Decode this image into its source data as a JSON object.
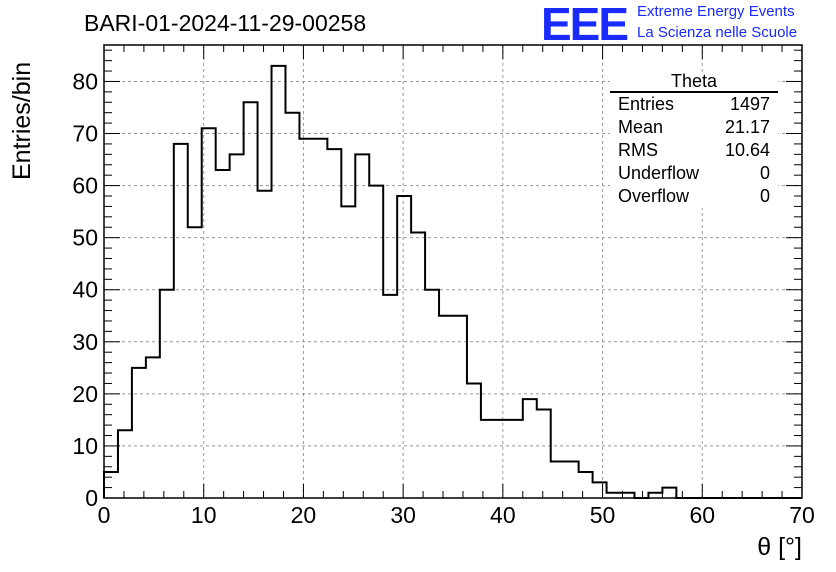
{
  "title": "BARI-01-2024-11-29-00258",
  "logo": {
    "mark": "EEE",
    "line1": "Extreme Energy Events",
    "line2": "La Scienza nelle Scuole",
    "color": "#1a2bff"
  },
  "stats": {
    "title": "Theta",
    "rows": [
      {
        "label": "Entries",
        "value": "1497"
      },
      {
        "label": "Mean",
        "value": "21.17"
      },
      {
        "label": "RMS",
        "value": "10.64"
      },
      {
        "label": "Underflow",
        "value": "0"
      },
      {
        "label": "Overflow",
        "value": "0"
      }
    ]
  },
  "chart_data": {
    "type": "histogram",
    "title": "BARI-01-2024-11-29-00258",
    "xlabel": "θ [°]",
    "ylabel": "Entries/bin",
    "xlim": [
      0,
      70
    ],
    "ylim": [
      0,
      87
    ],
    "grid": true,
    "bin_width": 1.4,
    "bin_edges_start": 0,
    "x_ticks": [
      0,
      10,
      20,
      30,
      40,
      50,
      60,
      70
    ],
    "y_ticks": [
      0,
      10,
      20,
      30,
      40,
      50,
      60,
      70,
      80
    ],
    "values": [
      5,
      13,
      25,
      27,
      40,
      68,
      52,
      71,
      63,
      66,
      76,
      59,
      83,
      74,
      69,
      69,
      67,
      56,
      66,
      60,
      39,
      58,
      51,
      40,
      35,
      35,
      22,
      15,
      15,
      15,
      19,
      17,
      7,
      7,
      5,
      3,
      1,
      1,
      0,
      1,
      2,
      0,
      0,
      0,
      0,
      0,
      0,
      0,
      0,
      0
    ]
  }
}
